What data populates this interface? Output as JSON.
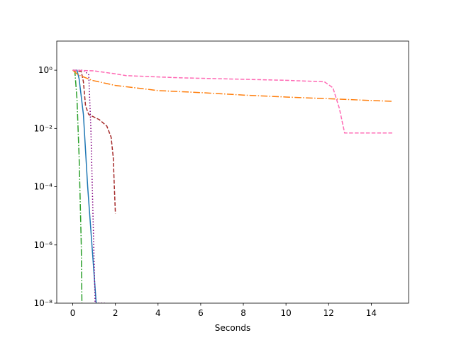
{
  "chart_data": {
    "type": "line",
    "xlabel": "Seconds",
    "xlim": [
      -0.75,
      15.75
    ],
    "xticks": [
      0,
      2,
      4,
      6,
      8,
      10,
      12,
      14
    ],
    "ylim": [
      1e-08,
      10
    ],
    "yscale": "log",
    "yticks": [
      {
        "value": 1e-08,
        "label": "10⁻⁸"
      },
      {
        "value": 1e-06,
        "label": "10⁻⁶"
      },
      {
        "value": 0.0001,
        "label": "10⁻⁴"
      },
      {
        "value": 0.01,
        "label": "10⁻²"
      },
      {
        "value": 1,
        "label": "10⁰"
      }
    ],
    "series": [
      {
        "color": "#1f77b4",
        "linestyle": "solid",
        "x": [
          0,
          0.2,
          0.3,
          0.5,
          0.7,
          0.9,
          1.1
        ],
        "values": [
          1,
          1,
          0.5,
          0.03,
          0.0001,
          1e-06,
          1e-08
        ]
      },
      {
        "color": "#2ca02c",
        "linestyle": "dashdot",
        "x": [
          0,
          0.1,
          0.2,
          0.3,
          0.4,
          0.43
        ],
        "values": [
          1,
          0.9,
          0.1,
          0.001,
          1e-06,
          1e-08
        ]
      },
      {
        "color": "#800080",
        "linestyle": "dotted",
        "x": [
          0,
          0.5,
          0.75,
          0.85,
          0.95,
          1.05,
          1.5
        ],
        "values": [
          1,
          1,
          0.7,
          0.01,
          1e-05,
          1e-08,
          1e-08
        ]
      },
      {
        "color": "#a52a2a",
        "linestyle": "dashed",
        "x": [
          0,
          0.4,
          0.5,
          0.6,
          0.75,
          1.25,
          1.6,
          1.8,
          1.9,
          1.95,
          2
        ],
        "values": [
          1,
          0.9,
          0.4,
          0.06,
          0.03,
          0.02,
          0.012,
          0.005,
          0.001,
          0.0001,
          1.2e-05
        ]
      },
      {
        "color": "#ff7f0e",
        "linestyle": "dashdot",
        "x": [
          0,
          0.25,
          0.9,
          2,
          4,
          6,
          8,
          10,
          12,
          15
        ],
        "values": [
          1,
          0.7,
          0.45,
          0.3,
          0.2,
          0.17,
          0.14,
          0.12,
          0.105,
          0.085
        ]
      },
      {
        "color": "#ff69b4",
        "linestyle": "dashed",
        "x": [
          0,
          1,
          2,
          2.5,
          5,
          10,
          11.8,
          12.2,
          12.5,
          12.75,
          15
        ],
        "values": [
          1,
          0.95,
          0.75,
          0.65,
          0.55,
          0.45,
          0.4,
          0.25,
          0.05,
          0.007,
          0.007
        ]
      }
    ]
  }
}
